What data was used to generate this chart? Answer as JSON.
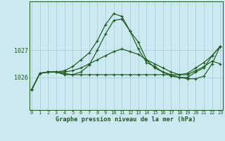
{
  "title": "Graphe pression niveau de la mer (hPa)",
  "background_color": "#cce8f0",
  "grid_color": "#aacfdf",
  "line_color": "#1a5c1a",
  "hours": [
    0,
    1,
    2,
    3,
    4,
    5,
    6,
    7,
    8,
    9,
    10,
    11,
    12,
    13,
    14,
    15,
    16,
    17,
    18,
    19,
    20,
    21,
    22,
    23
  ],
  "series": [
    [
      1025.55,
      1026.15,
      1026.2,
      1026.2,
      1026.15,
      1026.1,
      1026.1,
      1026.1,
      1026.1,
      1026.1,
      1026.1,
      1026.1,
      1026.1,
      1026.1,
      1026.1,
      1026.1,
      1026.1,
      1026.1,
      1026.1,
      1026.1,
      1026.25,
      1026.4,
      1026.6,
      1026.5
    ],
    [
      1025.55,
      1026.15,
      1026.2,
      1026.2,
      1026.2,
      1026.25,
      1026.35,
      1026.5,
      1026.65,
      1026.8,
      1026.95,
      1027.05,
      1026.95,
      1026.85,
      1026.65,
      1026.5,
      1026.35,
      1026.2,
      1026.1,
      1026.15,
      1026.35,
      1026.55,
      1026.8,
      1027.15
    ],
    [
      1025.55,
      1026.15,
      1026.2,
      1026.2,
      1026.1,
      1026.1,
      1026.2,
      1026.45,
      1027.0,
      1027.6,
      1028.1,
      1028.15,
      1027.7,
      1027.3,
      1026.65,
      1026.35,
      1026.2,
      1026.1,
      1026.0,
      1025.95,
      1025.95,
      1026.05,
      1026.5,
      1027.15
    ],
    [
      1025.55,
      1026.15,
      1026.2,
      1026.2,
      1026.25,
      1026.4,
      1026.65,
      1026.9,
      1027.35,
      1027.95,
      1028.35,
      1028.25,
      1027.7,
      1027.05,
      1026.55,
      1026.4,
      1026.2,
      1026.05,
      1026.0,
      1026.0,
      1026.2,
      1026.35,
      1026.8,
      1027.15
    ]
  ],
  "ylim": [
    1024.8,
    1028.8
  ],
  "yticks": [
    1026,
    1027
  ],
  "xlim": [
    -0.3,
    23.3
  ],
  "xticks": [
    0,
    1,
    2,
    3,
    4,
    5,
    6,
    7,
    8,
    9,
    10,
    11,
    12,
    13,
    14,
    15,
    16,
    17,
    18,
    19,
    20,
    21,
    22,
    23
  ]
}
